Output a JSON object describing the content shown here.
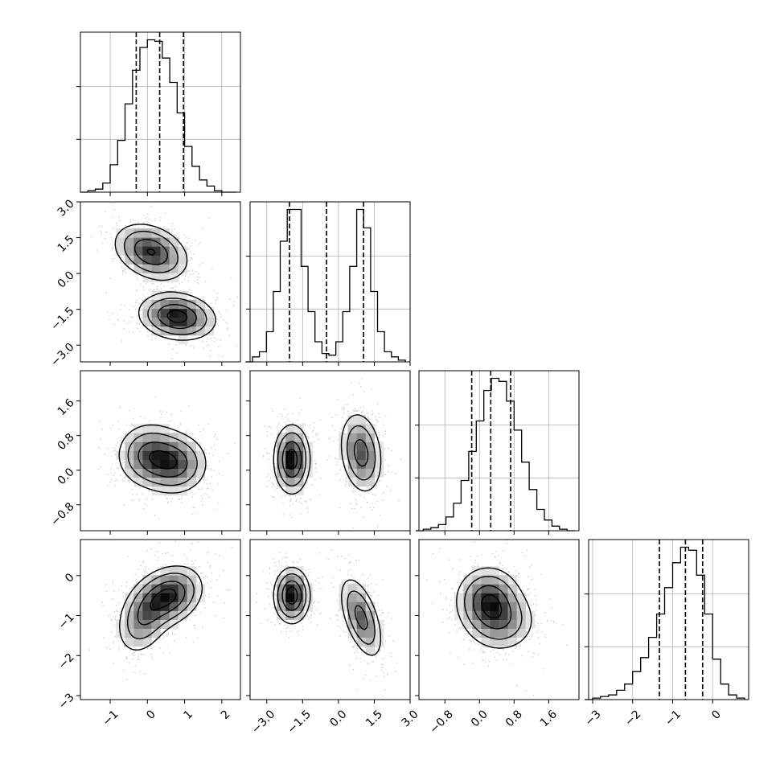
{
  "chart_data": {
    "type": "corner",
    "parameters": 4,
    "grid": true,
    "colors": {
      "line": "#000000",
      "grid": "#b0b0b0",
      "scatter": "#000000",
      "density": "#000000"
    },
    "params": [
      {
        "index": 0,
        "range": [
          -1.8,
          2.5
        ],
        "ticks": [
          -1,
          0,
          1,
          2
        ],
        "tick_labels": [
          "−1",
          "0",
          "1",
          "2"
        ],
        "quantiles": [
          -0.3,
          0.33,
          0.97
        ],
        "hist_edges": [
          -1.6,
          2.4
        ],
        "hist_counts": [
          1,
          2,
          6,
          18,
          34,
          58,
          80,
          95,
          100,
          99,
          88,
          72,
          52,
          30,
          17,
          8,
          4,
          1,
          0,
          0
        ]
      },
      {
        "index": 1,
        "range": [
          -3.7,
          3.0
        ],
        "ticks": [
          -3.0,
          -1.5,
          0.0,
          1.5,
          3.0
        ],
        "tick_labels": [
          "−3.0",
          "−1.5",
          "0.0",
          "1.5",
          "3.0"
        ],
        "quantiles": [
          -2.05,
          -0.5,
          1.05
        ],
        "hist_edges": [
          -3.6,
          2.8
        ],
        "hist_counts": [
          3,
          6,
          18,
          42,
          72,
          91,
          91,
          57,
          30,
          12,
          5,
          4,
          12,
          30,
          57,
          91,
          80,
          42,
          18,
          6,
          3,
          1
        ]
      },
      {
        "index": 2,
        "range": [
          -1.4,
          2.3
        ],
        "ticks": [
          -0.8,
          0.0,
          0.8,
          1.6
        ],
        "tick_labels": [
          "−0.8",
          "0.0",
          "0.8",
          "1.6"
        ],
        "quantiles": [
          -0.18,
          0.26,
          0.72
        ],
        "hist_edges": [
          -1.3,
          2.2
        ],
        "hist_counts": [
          1,
          2,
          4,
          9,
          18,
          33,
          52,
          72,
          92,
          100,
          98,
          85,
          66,
          45,
          27,
          14,
          7,
          3,
          1,
          0
        ]
      },
      {
        "index": 3,
        "range": [
          -3.1,
          0.9
        ],
        "ticks": [
          -3,
          -2,
          -1,
          0
        ],
        "tick_labels": [
          "−3",
          "−2",
          "−1",
          "0"
        ],
        "quantiles": [
          -1.33,
          -0.68,
          -0.25
        ],
        "hist_edges": [
          -3.0,
          0.8
        ],
        "hist_counts": [
          1,
          2,
          3,
          6,
          10,
          18,
          27,
          40,
          55,
          72,
          88,
          98,
          96,
          80,
          55,
          26,
          10,
          3,
          1
        ]
      }
    ],
    "pairs": [
      {
        "row": 1,
        "col": 0,
        "ylim": [
          -3.7,
          3.0
        ],
        "yticks": [
          3.0,
          1.5,
          0.0,
          -1.5,
          -3.0
        ],
        "ytick_labels": [
          "3.0",
          "1.5",
          "0.0",
          "−1.5",
          "−3.0"
        ],
        "modes": [
          {
            "x": 0.1,
            "y": 0.9,
            "sx": 0.5,
            "sy": 0.6,
            "rho": -0.3,
            "weight": 0.5
          },
          {
            "x": 0.8,
            "y": -1.8,
            "sx": 0.52,
            "sy": 0.5,
            "rho": -0.15,
            "weight": 0.5
          }
        ]
      },
      {
        "row": 2,
        "col": 0,
        "ylim": [
          -1.4,
          2.3
        ],
        "yticks": [
          1.6,
          0.8,
          0.0,
          -0.8
        ],
        "ytick_labels": [
          "1.6",
          "0.8",
          "0.0",
          "−0.8"
        ],
        "modes": [
          {
            "x": 0.05,
            "y": 0.35,
            "sx": 0.45,
            "sy": 0.38,
            "rho": 0.0,
            "weight": 0.5
          },
          {
            "x": 0.75,
            "y": 0.15,
            "sx": 0.45,
            "sy": 0.36,
            "rho": 0.0,
            "weight": 0.5
          }
        ]
      },
      {
        "row": 2,
        "col": 1,
        "ylim": [
          -1.4,
          2.3
        ],
        "yticks": [],
        "ytick_labels": [],
        "modes": [
          {
            "x": -1.95,
            "y": 0.25,
            "sx": 0.38,
            "sy": 0.4,
            "rho": 0.0,
            "weight": 0.5
          },
          {
            "x": 0.95,
            "y": 0.4,
            "sx": 0.45,
            "sy": 0.48,
            "rho": -0.2,
            "weight": 0.5
          }
        ]
      },
      {
        "row": 3,
        "col": 0,
        "ylim": [
          -3.1,
          0.9
        ],
        "yticks": [
          0,
          -1,
          -2,
          -3
        ],
        "ytick_labels": [
          "0",
          "−1",
          "−2",
          "−3"
        ],
        "modes": [
          {
            "x": 0.6,
            "y": -0.5,
            "sx": 0.45,
            "sy": 0.38,
            "rho": 0.25,
            "weight": 0.6
          },
          {
            "x": -0.1,
            "y": -1.05,
            "sx": 0.38,
            "sy": 0.48,
            "rho": 0.3,
            "weight": 0.4
          }
        ]
      },
      {
        "row": 3,
        "col": 1,
        "ylim": [
          -3.1,
          0.9
        ],
        "yticks": [],
        "ytick_labels": [],
        "modes": [
          {
            "x": -1.95,
            "y": -0.5,
            "sx": 0.38,
            "sy": 0.35,
            "rho": 0.0,
            "weight": 0.5
          },
          {
            "x": 0.95,
            "y": -1.05,
            "sx": 0.45,
            "sy": 0.52,
            "rho": -0.55,
            "weight": 0.5
          }
        ]
      },
      {
        "row": 3,
        "col": 2,
        "ylim": [
          -3.1,
          0.9
        ],
        "yticks": [],
        "ytick_labels": [],
        "modes": [
          {
            "x": 0.2,
            "y": -0.6,
            "sx": 0.38,
            "sy": 0.42,
            "rho": 0.0,
            "weight": 0.6
          },
          {
            "x": 0.5,
            "y": -1.15,
            "sx": 0.42,
            "sy": 0.4,
            "rho": 0.0,
            "weight": 0.4
          }
        ]
      }
    ]
  }
}
